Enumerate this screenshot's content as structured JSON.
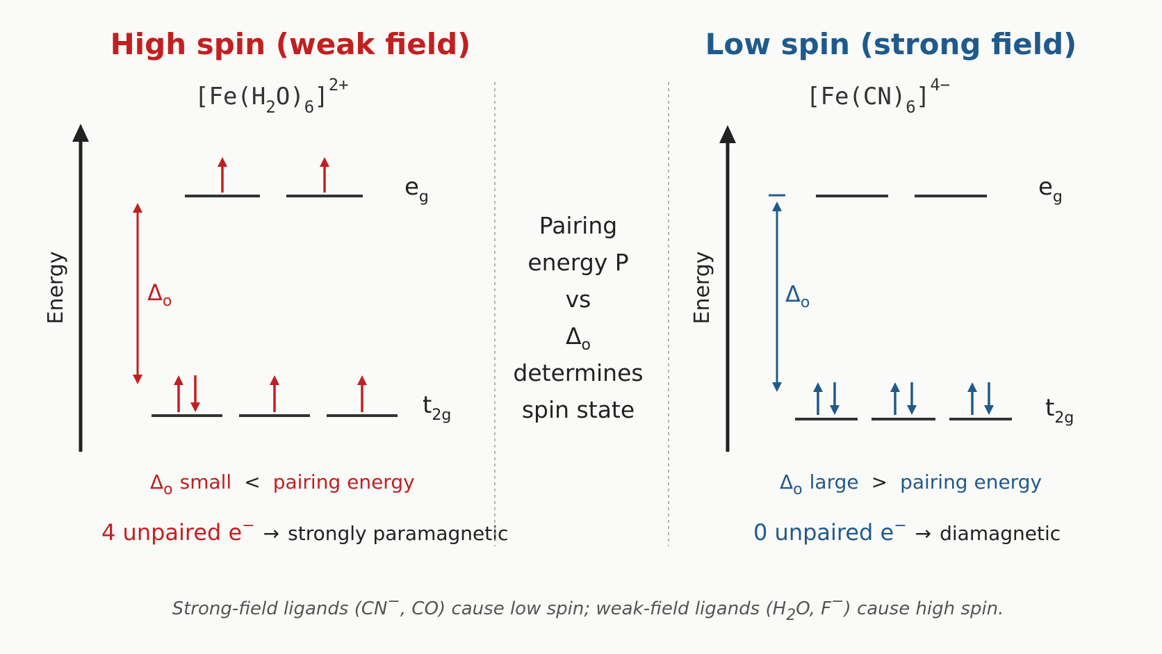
{
  "colors": {
    "high_spin": "#c21f1f",
    "low_spin": "#1f5a8c",
    "ink": "#222222",
    "divider": "#999999"
  },
  "high_spin": {
    "title": "High spin (weak field)",
    "formula": {
      "open": "[Fe(H",
      "sub1": "2",
      "mid": "O)",
      "sub2": "6",
      "close": "]",
      "charge": "2+"
    },
    "axis_label": "Energy",
    "eg_label": {
      "main": "e",
      "sub": "g"
    },
    "t2g_label": {
      "main": "t",
      "sub": "2g"
    },
    "delta_label": {
      "main": "Δ",
      "sub": "o"
    },
    "eg_electrons": [
      "up",
      "up"
    ],
    "t2g_electrons": [
      "up-down",
      "up",
      "up"
    ],
    "comparison": {
      "delta": "Δ",
      "delta_sub": "o",
      "word": "small",
      "op": "<",
      "rest": "pairing energy"
    },
    "result": {
      "count": "4 unpaired e",
      "sup": "−",
      "arrow": "→",
      "text": "strongly paramagnetic"
    }
  },
  "low_spin": {
    "title": "Low spin (strong field)",
    "formula": {
      "open": "[Fe(CN)",
      "sub2": "6",
      "close": "]",
      "charge": "4−"
    },
    "axis_label": "Energy",
    "eg_label": {
      "main": "e",
      "sub": "g"
    },
    "t2g_label": {
      "main": "t",
      "sub": "2g"
    },
    "delta_label": {
      "main": "Δ",
      "sub": "o"
    },
    "eg_electrons": [
      "none",
      "none"
    ],
    "t2g_electrons": [
      "up-down",
      "up-down",
      "up-down"
    ],
    "comparison": {
      "delta": "Δ",
      "delta_sub": "o",
      "word": "large",
      "op": ">",
      "rest": "pairing energy"
    },
    "result": {
      "count": "0 unpaired e",
      "sup": "−",
      "arrow": "→",
      "text": "diamagnetic"
    }
  },
  "center": {
    "line1": "Pairing",
    "line2": "energy P",
    "line3": "vs",
    "delta": "Δ",
    "delta_sub": "o",
    "line5": "determines",
    "line6": "spin state"
  },
  "footnote": {
    "part1": "Strong-field ligands (CN",
    "sup1": "−",
    "part2": ", CO) cause low spin; weak-field ligands (H",
    "sub": "2",
    "part3": "O, F",
    "sup2": "−",
    "part4": ") cause high spin."
  }
}
